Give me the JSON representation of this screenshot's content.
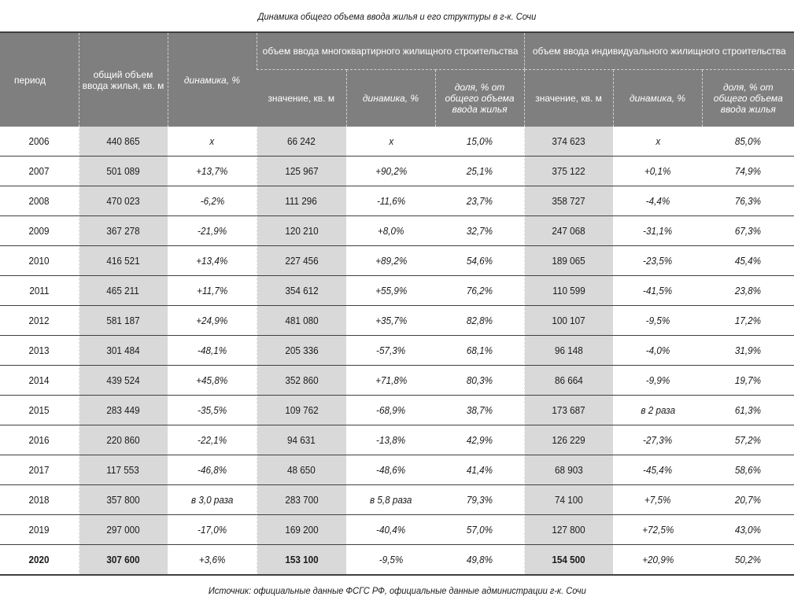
{
  "title": "Динамика общего объема ввода жилья и его структуры в г-к. Сочи",
  "header": {
    "period": "период",
    "total": "общий объем ввода жилья, кв. м",
    "dynamics": "динамика, %",
    "group_multi": "объем ввода многоквартирного жилищного строительства",
    "group_ind": "объем ввода индивидуального жилищного строительства",
    "value": "значение, кв. м",
    "sub_dynamics": "динамика, %",
    "share": "доля, % от общего объема ввода жилья"
  },
  "rows": [
    {
      "year": "2006",
      "total": "440 865",
      "dyn": "х",
      "m_val": "66 242",
      "m_dyn": "х",
      "m_share": "15,0%",
      "i_val": "374 623",
      "i_dyn": "х",
      "i_share": "85,0%"
    },
    {
      "year": "2007",
      "total": "501 089",
      "dyn": "+13,7%",
      "m_val": "125 967",
      "m_dyn": "+90,2%",
      "m_share": "25,1%",
      "i_val": "375 122",
      "i_dyn": "+0,1%",
      "i_share": "74,9%"
    },
    {
      "year": "2008",
      "total": "470 023",
      "dyn": "-6,2%",
      "m_val": "111 296",
      "m_dyn": "-11,6%",
      "m_share": "23,7%",
      "i_val": "358 727",
      "i_dyn": "-4,4%",
      "i_share": "76,3%"
    },
    {
      "year": "2009",
      "total": "367 278",
      "dyn": "-21,9%",
      "m_val": "120 210",
      "m_dyn": "+8,0%",
      "m_share": "32,7%",
      "i_val": "247 068",
      "i_dyn": "-31,1%",
      "i_share": "67,3%"
    },
    {
      "year": "2010",
      "total": "416 521",
      "dyn": "+13,4%",
      "m_val": "227 456",
      "m_dyn": "+89,2%",
      "m_share": "54,6%",
      "i_val": "189 065",
      "i_dyn": "-23,5%",
      "i_share": "45,4%"
    },
    {
      "year": "2011",
      "total": "465 211",
      "dyn": "+11,7%",
      "m_val": "354 612",
      "m_dyn": "+55,9%",
      "m_share": "76,2%",
      "i_val": "110 599",
      "i_dyn": "-41,5%",
      "i_share": "23,8%"
    },
    {
      "year": "2012",
      "total": "581 187",
      "dyn": "+24,9%",
      "m_val": "481 080",
      "m_dyn": "+35,7%",
      "m_share": "82,8%",
      "i_val": "100 107",
      "i_dyn": "-9,5%",
      "i_share": "17,2%"
    },
    {
      "year": "2013",
      "total": "301 484",
      "dyn": "-48,1%",
      "m_val": "205 336",
      "m_dyn": "-57,3%",
      "m_share": "68,1%",
      "i_val": "96 148",
      "i_dyn": "-4,0%",
      "i_share": "31,9%"
    },
    {
      "year": "2014",
      "total": "439 524",
      "dyn": "+45,8%",
      "m_val": "352 860",
      "m_dyn": "+71,8%",
      "m_share": "80,3%",
      "i_val": "86 664",
      "i_dyn": "-9,9%",
      "i_share": "19,7%"
    },
    {
      "year": "2015",
      "total": "283 449",
      "dyn": "-35,5%",
      "m_val": "109 762",
      "m_dyn": "-68,9%",
      "m_share": "38,7%",
      "i_val": "173 687",
      "i_dyn": "в 2 раза",
      "i_share": "61,3%"
    },
    {
      "year": "2016",
      "total": "220 860",
      "dyn": "-22,1%",
      "m_val": "94 631",
      "m_dyn": "-13,8%",
      "m_share": "42,9%",
      "i_val": "126 229",
      "i_dyn": "-27,3%",
      "i_share": "57,2%"
    },
    {
      "year": "2017",
      "total": "117 553",
      "dyn": "-46,8%",
      "m_val": "48 650",
      "m_dyn": "-48,6%",
      "m_share": "41,4%",
      "i_val": "68 903",
      "i_dyn": "-45,4%",
      "i_share": "58,6%"
    },
    {
      "year": "2018",
      "total": "357 800",
      "dyn": "в 3,0 раза",
      "m_val": "283 700",
      "m_dyn": "в 5,8 раза",
      "m_share": "79,3%",
      "i_val": "74 100",
      "i_dyn": "+7,5%",
      "i_share": "20,7%"
    },
    {
      "year": "2019",
      "total": "297 000",
      "dyn": "-17,0%",
      "m_val": "169 200",
      "m_dyn": "-40,4%",
      "m_share": "57,0%",
      "i_val": "127 800",
      "i_dyn": "+72,5%",
      "i_share": "43,0%"
    },
    {
      "year": "2020",
      "total": "307 600",
      "dyn": "+3,6%",
      "m_val": "153 100",
      "m_dyn": "-9,5%",
      "m_share": "49,8%",
      "i_val": "154 500",
      "i_dyn": "+20,9%",
      "i_share": "50,2%"
    }
  ],
  "source": "Источник: официальные данные ФСГС РФ, официальные данные администрации г-к. Сочи",
  "colors": {
    "header_bg": "#7f7f7f",
    "shaded_col": "#d9d9d9",
    "rule": "#404040"
  }
}
